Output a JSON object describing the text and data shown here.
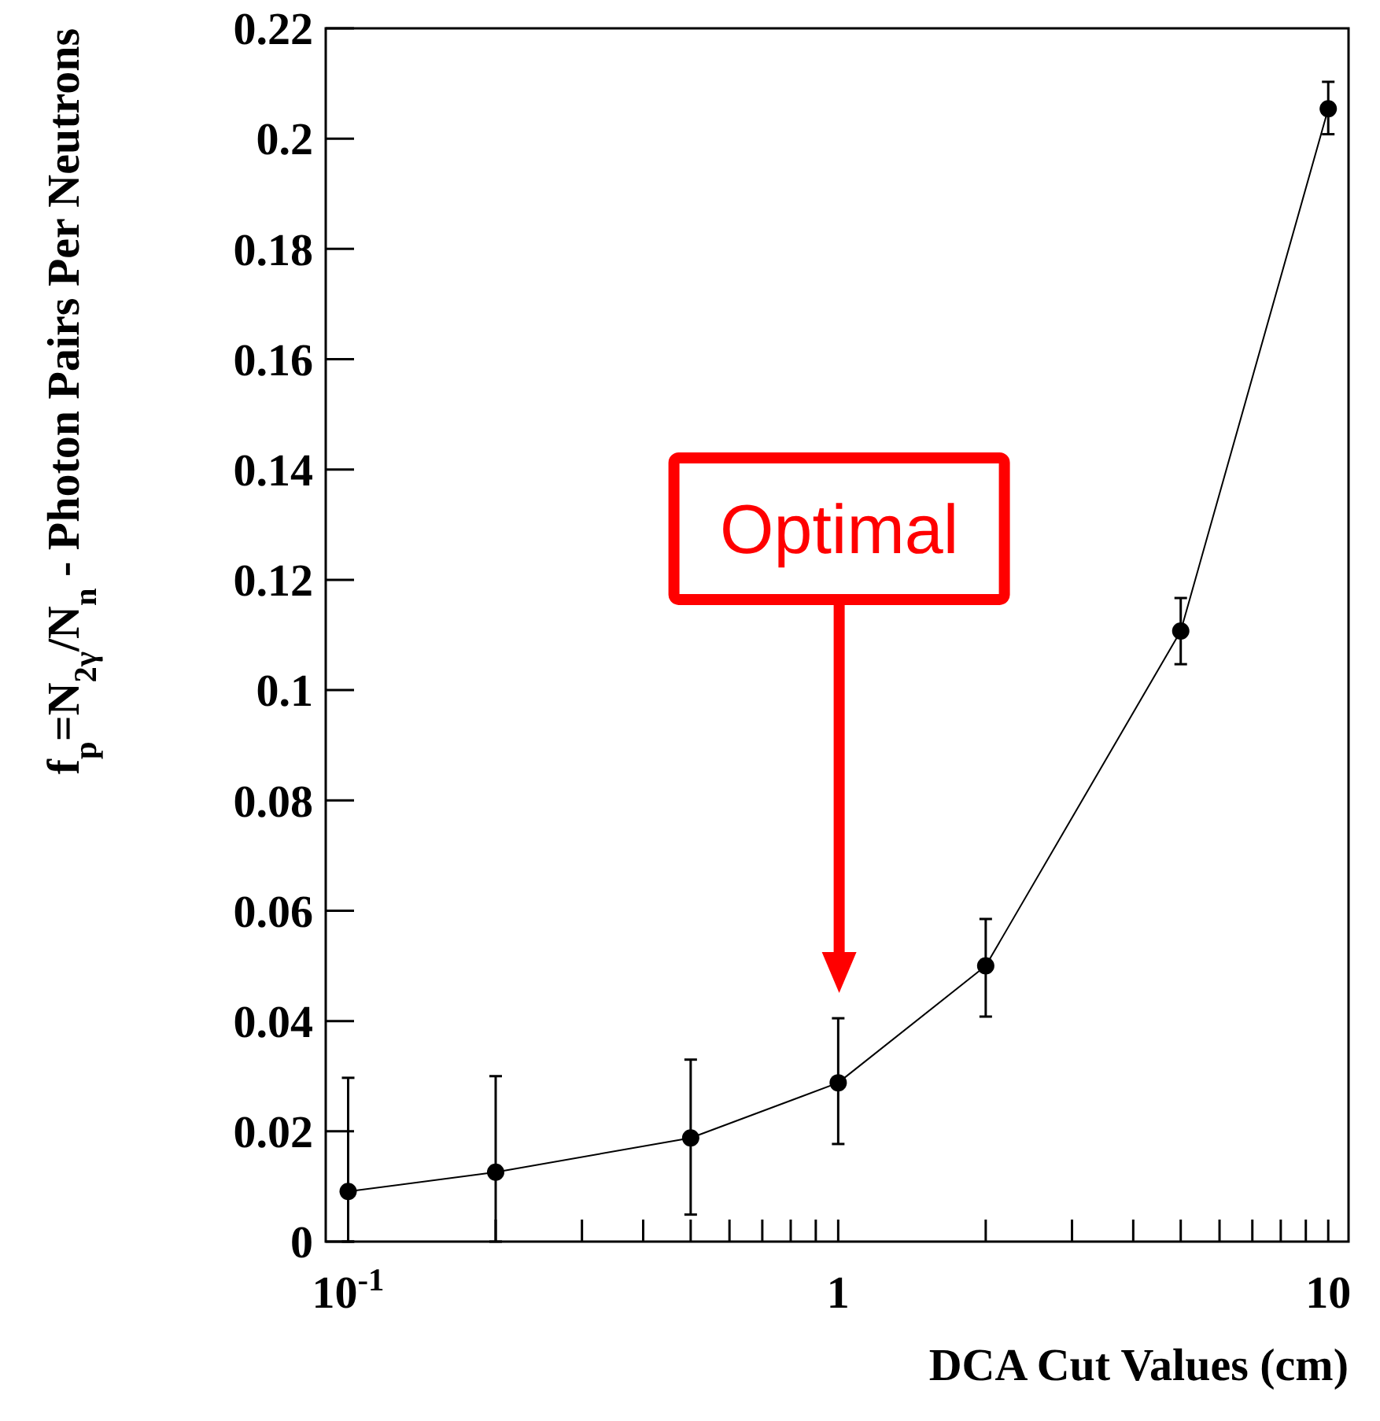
{
  "chart_data": {
    "type": "line",
    "xlabel": "DCA Cut Values (cm)",
    "ylabel": "f$_{p}$=N$_{2γ}$/N$_{n}$ - Photon Pairs Per Neutrons",
    "x": [
      0.1,
      0.2,
      0.5,
      1,
      2,
      5,
      10
    ],
    "series": [
      {
        "color": "#000000",
        "values": [
          0.0091,
          0.0126,
          0.0188,
          0.0288,
          0.05,
          0.1107,
          0.2054
        ],
        "errors": [
          [
            0,
            0.0297
          ],
          [
            0,
            0.03
          ],
          [
            0.0049,
            0.033
          ],
          [
            0.0177,
            0.0405
          ],
          [
            0.0408,
            0.0585
          ],
          [
            0.1047,
            0.1167
          ],
          [
            0.2008,
            0.2103
          ]
        ]
      }
    ],
    "log": "x",
    "marker": "circle",
    "line_style": "solid",
    "grid": false,
    "xlim": [
      0.09,
      11
    ],
    "ylim": [
      0,
      0.22
    ],
    "xticks": [
      {
        "value": 0.1,
        "label": "10$^{-1}$"
      },
      {
        "value": 0.2,
        "label": null
      },
      {
        "value": 0.3,
        "label": null
      },
      {
        "value": 0.4,
        "label": null
      },
      {
        "value": 0.5,
        "label": null
      },
      {
        "value": 0.6,
        "label": null
      },
      {
        "value": 0.7,
        "label": null
      },
      {
        "value": 0.8,
        "label": null
      },
      {
        "value": 0.9,
        "label": null
      },
      1,
      {
        "value": 2,
        "label": null
      },
      {
        "value": 3,
        "label": null
      },
      {
        "value": 4,
        "label": null
      },
      {
        "value": 5,
        "label": null
      },
      {
        "value": 6,
        "label": null
      },
      {
        "value": 7,
        "label": null
      },
      {
        "value": 8,
        "label": null
      },
      {
        "value": 9,
        "label": null
      },
      10
    ],
    "yticks": [
      0,
      0.02,
      0.04,
      0.06,
      0.08,
      0.1,
      0.12,
      0.14,
      0.16,
      0.18,
      0.2,
      0.22
    ],
    "annotations": [
      "Optimal"
    ]
  }
}
